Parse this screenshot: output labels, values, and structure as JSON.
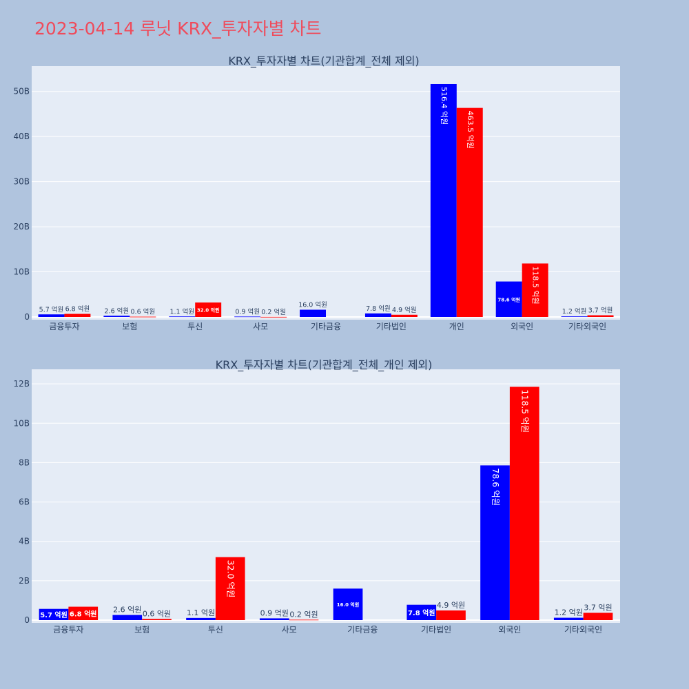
{
  "page_title": "2023-04-14 루닛 KRX_투자자별 차트",
  "colors": {
    "buy": "#0000ff",
    "sell": "#ff0000",
    "background": "#b0c4de",
    "plot_bg": "#e5ecf6"
  },
  "chart_data": [
    {
      "type": "bar",
      "title": "KRX_투자자별 차트(기관합계_전체 제외)",
      "categories": [
        "금융투자",
        "보험",
        "투신",
        "사모",
        "기타금융",
        "기타법인",
        "개인",
        "외국인",
        "기타외국인"
      ],
      "series": [
        {
          "values": [
            570000000,
            260000000,
            110000000,
            90000000,
            1600000000,
            780000000,
            51640000000,
            7860000000,
            120000000
          ],
          "labels": [
            "5.7 억원",
            "2.6 억원",
            "1.1 억원",
            "0.9 억원",
            "16.0 억원",
            "7.8 억원",
            "516.4 억원",
            "78.6 억원",
            "1.2 억원"
          ]
        },
        {
          "values": [
            680000000,
            60000000,
            3200000000,
            20000000,
            0,
            490000000,
            46350000000,
            11850000000,
            370000000
          ],
          "labels": [
            "6.8 억원",
            "0.6 억원",
            "32.0 억원",
            "0.2 억원",
            "",
            "4.9 억원",
            "463.5 억원",
            "118.5 억원",
            "3.7 억원"
          ]
        }
      ],
      "ylim": [
        0,
        55000000000
      ],
      "yticks": [
        0,
        10000000000,
        20000000000,
        30000000000,
        40000000000,
        50000000000
      ],
      "ytick_labels": [
        "0",
        "10B",
        "20B",
        "30B",
        "40B",
        "50B"
      ],
      "grid": true
    },
    {
      "type": "bar",
      "title": "KRX_투자자별 차트(기관합계_전체_개인 제외)",
      "categories": [
        "금융투자",
        "보험",
        "투신",
        "사모",
        "기타금융",
        "기타법인",
        "외국인",
        "기타외국인"
      ],
      "series": [
        {
          "values": [
            570000000,
            260000000,
            110000000,
            90000000,
            1600000000,
            780000000,
            7860000000,
            120000000
          ],
          "labels": [
            "5.7 억원",
            "2.6 억원",
            "1.1 억원",
            "0.9 억원",
            "16.0 억원",
            "7.8 억원",
            "78.6 억원",
            "1.2 억원"
          ]
        },
        {
          "values": [
            680000000,
            60000000,
            3200000000,
            20000000,
            0,
            490000000,
            11850000000,
            370000000
          ],
          "labels": [
            "6.8 억원",
            "0.6 억원",
            "32.0 억원",
            "0.2 억원",
            "",
            "4.9 억원",
            "118.5 억원",
            "3.7 억원"
          ]
        }
      ],
      "ylim": [
        0,
        12600000000
      ],
      "yticks": [
        0,
        2000000000,
        4000000000,
        6000000000,
        8000000000,
        10000000000,
        12000000000
      ],
      "ytick_labels": [
        "0",
        "2B",
        "4B",
        "6B",
        "8B",
        "10B",
        "12B"
      ],
      "grid": true
    }
  ]
}
